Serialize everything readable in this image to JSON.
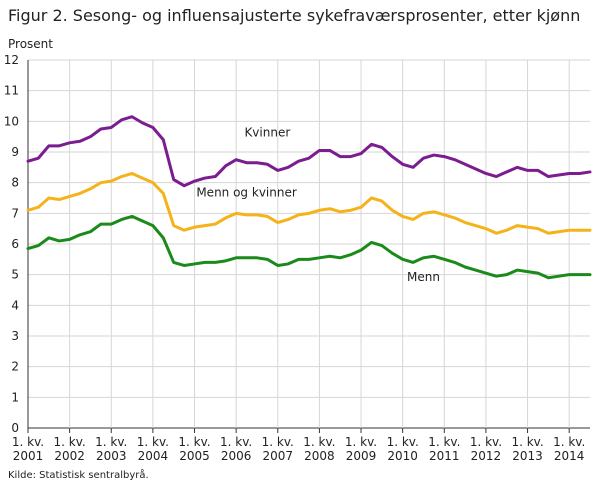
{
  "figure": {
    "title": "Figur 2. Sesong- og influensajusterte sykefraværsprosenter, etter kjønn",
    "source": "Kilde: Statistisk sentralbyrå."
  },
  "chart_data": {
    "type": "line",
    "title": "Figur 2. Sesong- og influensajusterte sykefraværsprosenter, etter kjønn",
    "ylabel": "Prosent",
    "xlabel": "",
    "ylim": [
      0,
      12
    ],
    "yticks": [
      0,
      1,
      2,
      3,
      4,
      5,
      6,
      7,
      8,
      9,
      10,
      11,
      12
    ],
    "grid": true,
    "legend": "inline labels",
    "x": [
      "2001K1",
      "2001K2",
      "2001K3",
      "2001K4",
      "2002K1",
      "2002K2",
      "2002K3",
      "2002K4",
      "2003K1",
      "2003K2",
      "2003K3",
      "2003K4",
      "2004K1",
      "2004K2",
      "2004K3",
      "2004K4",
      "2005K1",
      "2005K2",
      "2005K3",
      "2005K4",
      "2006K1",
      "2006K2",
      "2006K3",
      "2006K4",
      "2007K1",
      "2007K2",
      "2007K3",
      "2007K4",
      "2008K1",
      "2008K2",
      "2008K3",
      "2008K4",
      "2009K1",
      "2009K2",
      "2009K3",
      "2009K4",
      "2010K1",
      "2010K2",
      "2010K3",
      "2010K4",
      "2011K1",
      "2011K2",
      "2011K3",
      "2011K4",
      "2012K1",
      "2012K2",
      "2012K3",
      "2012K4",
      "2013K1",
      "2013K2",
      "2013K3",
      "2013K4",
      "2014K1",
      "2014K2",
      "2014K3"
    ],
    "xtick_labels": [
      [
        "1. kv.",
        "2001"
      ],
      [
        "1. kv.",
        "2002"
      ],
      [
        "1. kv.",
        "2003"
      ],
      [
        "1. kv.",
        "2004"
      ],
      [
        "1. kv.",
        "2005"
      ],
      [
        "1. kv.",
        "2006"
      ],
      [
        "1. kv.",
        "2007"
      ],
      [
        "1. kv.",
        "2008"
      ],
      [
        "1. kv.",
        "2009"
      ],
      [
        "1. kv.",
        "2010"
      ],
      [
        "1. kv.",
        "2011"
      ],
      [
        "1. kv.",
        "2012"
      ],
      [
        "1. kv.",
        "2013"
      ],
      [
        "1. kv.",
        "2014"
      ]
    ],
    "series": [
      {
        "name": "Kvinner",
        "color": "#7b1c8f",
        "values": [
          8.7,
          8.8,
          9.2,
          9.2,
          9.3,
          9.35,
          9.5,
          9.75,
          9.8,
          10.05,
          10.15,
          9.95,
          9.8,
          9.4,
          8.1,
          7.9,
          8.05,
          8.15,
          8.2,
          8.55,
          8.75,
          8.65,
          8.65,
          8.6,
          8.4,
          8.5,
          8.7,
          8.8,
          9.05,
          9.05,
          8.85,
          8.85,
          8.95,
          9.25,
          9.15,
          8.85,
          8.6,
          8.5,
          8.8,
          8.9,
          8.85,
          8.75,
          8.6,
          8.45,
          8.3,
          8.2,
          8.35,
          8.5,
          8.4,
          8.4,
          8.2,
          8.25,
          8.3,
          8.3,
          8.35
        ]
      },
      {
        "name": "Menn og kvinner",
        "color": "#f5b21a",
        "values": [
          7.1,
          7.2,
          7.5,
          7.45,
          7.55,
          7.65,
          7.8,
          8.0,
          8.05,
          8.2,
          8.3,
          8.15,
          8.0,
          7.65,
          6.6,
          6.45,
          6.55,
          6.6,
          6.65,
          6.85,
          7.0,
          6.95,
          6.95,
          6.9,
          6.7,
          6.8,
          6.95,
          7.0,
          7.1,
          7.15,
          7.05,
          7.1,
          7.2,
          7.5,
          7.4,
          7.1,
          6.9,
          6.8,
          7.0,
          7.05,
          6.95,
          6.85,
          6.7,
          6.6,
          6.5,
          6.35,
          6.45,
          6.6,
          6.55,
          6.5,
          6.35,
          6.4,
          6.45,
          6.45,
          6.45
        ]
      },
      {
        "name": "Menn",
        "color": "#1a8a1a",
        "values": [
          5.85,
          5.95,
          6.2,
          6.1,
          6.15,
          6.3,
          6.4,
          6.65,
          6.65,
          6.8,
          6.9,
          6.75,
          6.6,
          6.2,
          5.4,
          5.3,
          5.35,
          5.4,
          5.4,
          5.45,
          5.55,
          5.55,
          5.55,
          5.5,
          5.3,
          5.35,
          5.5,
          5.5,
          5.55,
          5.6,
          5.55,
          5.65,
          5.8,
          6.05,
          5.95,
          5.7,
          5.5,
          5.4,
          5.55,
          5.6,
          5.5,
          5.4,
          5.25,
          5.15,
          5.05,
          4.95,
          5.0,
          5.15,
          5.1,
          5.05,
          4.9,
          4.95,
          5.0,
          5.0,
          5.0
        ]
      }
    ],
    "annotations": [
      {
        "text": "Kvinner",
        "series": "Kvinner",
        "x_index": 23,
        "y": 9.5
      },
      {
        "text": "Menn og kvinner",
        "series": "Menn og kvinner",
        "x_index": 21,
        "y": 7.55
      },
      {
        "text": "Menn",
        "series": "Menn",
        "x_index": 38,
        "y": 4.8
      }
    ]
  }
}
